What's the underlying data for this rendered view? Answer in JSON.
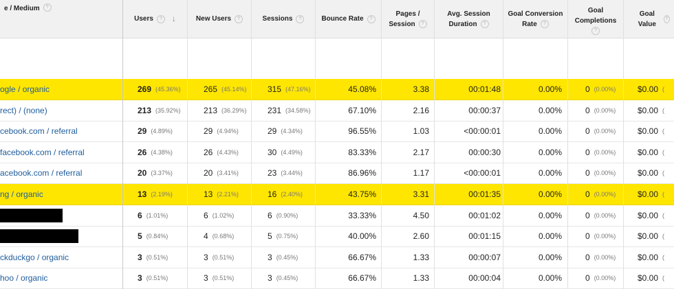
{
  "header": {
    "source_medium": "e / Medium",
    "users": "Users",
    "new_users": "New Users",
    "sessions": "Sessions",
    "bounce_rate": "Bounce Rate",
    "pages_session_1": "Pages /",
    "pages_session_2": "Session",
    "avg_duration_1": "Avg. Session",
    "avg_duration_2": "Duration",
    "goal_conv_1": "Goal Conversion",
    "goal_conv_2": "Rate",
    "goal_comp_1": "Goal",
    "goal_comp_2": "Completions",
    "goal_value": "Goal Value",
    "help_glyph": "?",
    "sort_glyph": "↓"
  },
  "rows": [
    {
      "source": "ogle / organic",
      "highlight": true,
      "users": "269",
      "users_pct": "(45.36%)",
      "new_users": "265",
      "new_users_pct": "(45.14%)",
      "sessions": "315",
      "sessions_pct": "(47.16%)",
      "bounce": "45.08%",
      "pages": "3.38",
      "duration": "00:01:48",
      "conv": "0.00%",
      "comp": "0",
      "comp_pct": "(0.00%)",
      "value": "$0.00",
      "value_pct": "("
    },
    {
      "source": "rect) / (none)",
      "highlight": false,
      "users": "213",
      "users_pct": "(35.92%)",
      "new_users": "213",
      "new_users_pct": "(36.29%)",
      "sessions": "231",
      "sessions_pct": "(34.58%)",
      "bounce": "67.10%",
      "pages": "2.16",
      "duration": "00:00:37",
      "conv": "0.00%",
      "comp": "0",
      "comp_pct": "(0.00%)",
      "value": "$0.00",
      "value_pct": "("
    },
    {
      "source": "cebook.com / referral",
      "highlight": false,
      "users": "29",
      "users_pct": "(4.89%)",
      "new_users": "29",
      "new_users_pct": "(4.94%)",
      "sessions": "29",
      "sessions_pct": "(4.34%)",
      "bounce": "96.55%",
      "pages": "1.03",
      "duration": "<00:00:01",
      "conv": "0.00%",
      "comp": "0",
      "comp_pct": "(0.00%)",
      "value": "$0.00",
      "value_pct": "("
    },
    {
      "source": "facebook.com / referral",
      "highlight": false,
      "users": "26",
      "users_pct": "(4.38%)",
      "new_users": "26",
      "new_users_pct": "(4.43%)",
      "sessions": "30",
      "sessions_pct": "(4.49%)",
      "bounce": "83.33%",
      "pages": "2.17",
      "duration": "00:00:30",
      "conv": "0.00%",
      "comp": "0",
      "comp_pct": "(0.00%)",
      "value": "$0.00",
      "value_pct": "("
    },
    {
      "source": "acebook.com / referral",
      "highlight": false,
      "users": "20",
      "users_pct": "(3.37%)",
      "new_users": "20",
      "new_users_pct": "(3.41%)",
      "sessions": "23",
      "sessions_pct": "(3.44%)",
      "bounce": "86.96%",
      "pages": "1.17",
      "duration": "<00:00:01",
      "conv": "0.00%",
      "comp": "0",
      "comp_pct": "(0.00%)",
      "value": "$0.00",
      "value_pct": "("
    },
    {
      "source": "ng / organic",
      "highlight": true,
      "users": "13",
      "users_pct": "(2.19%)",
      "new_users": "13",
      "new_users_pct": "(2.21%)",
      "sessions": "16",
      "sessions_pct": "(2.40%)",
      "bounce": "43.75%",
      "pages": "3.31",
      "duration": "00:01:35",
      "conv": "0.00%",
      "comp": "0",
      "comp_pct": "(0.00%)",
      "value": "$0.00",
      "value_pct": "("
    },
    {
      "source": "",
      "redacted": true,
      "highlight": false,
      "users": "6",
      "users_pct": "(1.01%)",
      "new_users": "6",
      "new_users_pct": "(1.02%)",
      "sessions": "6",
      "sessions_pct": "(0.90%)",
      "bounce": "33.33%",
      "pages": "4.50",
      "duration": "00:01:02",
      "conv": "0.00%",
      "comp": "0",
      "comp_pct": "(0.00%)",
      "value": "$0.00",
      "value_pct": "("
    },
    {
      "source": "",
      "redacted": true,
      "highlight": false,
      "users": "5",
      "users_pct": "(0.84%)",
      "new_users": "4",
      "new_users_pct": "(0.68%)",
      "sessions": "5",
      "sessions_pct": "(0.75%)",
      "bounce": "40.00%",
      "pages": "2.60",
      "duration": "00:01:15",
      "conv": "0.00%",
      "comp": "0",
      "comp_pct": "(0.00%)",
      "value": "$0.00",
      "value_pct": "("
    },
    {
      "source": "ckduckgo / organic",
      "highlight": false,
      "users": "3",
      "users_pct": "(0.51%)",
      "new_users": "3",
      "new_users_pct": "(0.51%)",
      "sessions": "3",
      "sessions_pct": "(0.45%)",
      "bounce": "66.67%",
      "pages": "1.33",
      "duration": "00:00:07",
      "conv": "0.00%",
      "comp": "0",
      "comp_pct": "(0.00%)",
      "value": "$0.00",
      "value_pct": "("
    },
    {
      "source": "hoo / organic",
      "highlight": false,
      "users": "3",
      "users_pct": "(0.51%)",
      "new_users": "3",
      "new_users_pct": "(0.51%)",
      "sessions": "3",
      "sessions_pct": "(0.45%)",
      "bounce": "66.67%",
      "pages": "1.33",
      "duration": "00:00:04",
      "conv": "0.00%",
      "comp": "0",
      "comp_pct": "(0.00%)",
      "value": "$0.00",
      "value_pct": "("
    }
  ],
  "colors": {
    "highlight": "#ffe600",
    "link": "#1e5c9c"
  }
}
